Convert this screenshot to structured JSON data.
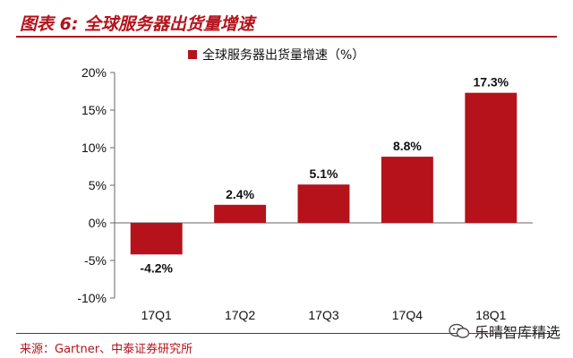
{
  "header": {
    "figure_title": "图表 6:  全球服务器出货量增速"
  },
  "footer": {
    "source": "来源：Gartner、中泰证券研究所",
    "watermark_text": "乐晴智库精选",
    "watermark_icon": "wechat-icon"
  },
  "colors": {
    "accent": "#b5121b",
    "bar": "#b5121b"
  },
  "chart_data": {
    "type": "bar",
    "categories": [
      "17Q1",
      "17Q2",
      "17Q3",
      "17Q4",
      "18Q1"
    ],
    "series": [
      {
        "name": "全球服务器出货量增速（%）",
        "values": [
          -4.2,
          2.4,
          5.1,
          8.8,
          17.3
        ]
      }
    ],
    "data_labels": [
      "-4.2%",
      "2.4%",
      "5.1%",
      "8.8%",
      "17.3%"
    ],
    "yticks": [
      20,
      15,
      10,
      5,
      0,
      -5,
      -10
    ],
    "ytick_labels": [
      "20%",
      "15%",
      "10%",
      "5%",
      "0%",
      "-5%",
      "-10%"
    ],
    "ylim": [
      -10,
      20
    ],
    "grid": false,
    "legend_position": "top-center"
  }
}
